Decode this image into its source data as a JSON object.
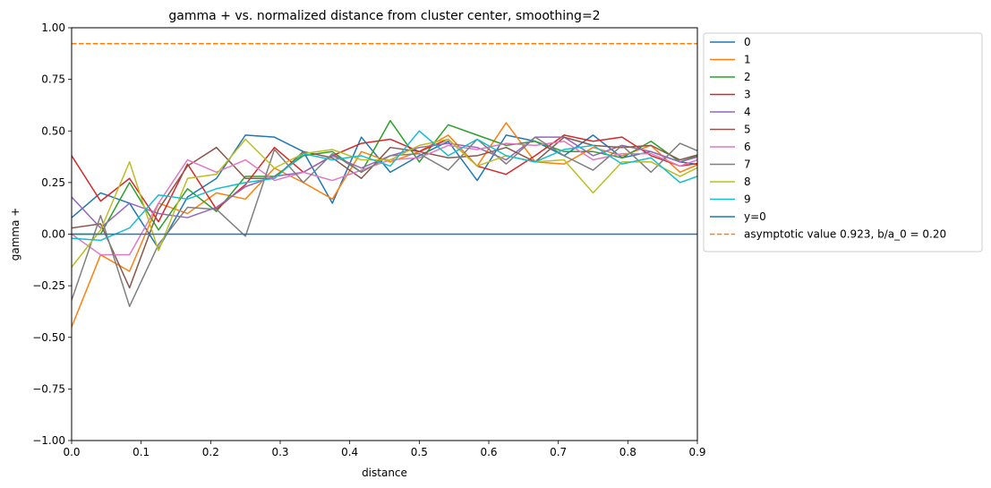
{
  "chart_data": {
    "type": "line",
    "title": "gamma + vs. normalized distance from cluster center, smoothing=2",
    "xlabel": "distance",
    "ylabel": "gamma +",
    "xlim": [
      0,
      0.9
    ],
    "ylim": [
      -1.0,
      1.0
    ],
    "xticks": [
      "0.0",
      "0.1",
      "0.2",
      "0.3",
      "0.4",
      "0.5",
      "0.6",
      "0.7",
      "0.8",
      "0.9"
    ],
    "yticks": [
      "−1.00",
      "−0.75",
      "−0.50",
      "−0.25",
      "0.00",
      "0.25",
      "0.50",
      "0.75",
      "1.00"
    ],
    "grid": false,
    "legend_position": "outside-right",
    "x": [
      0.0,
      0.0417,
      0.0833,
      0.125,
      0.1667,
      0.2083,
      0.25,
      0.2917,
      0.3333,
      0.375,
      0.4167,
      0.4583,
      0.5,
      0.5417,
      0.5833,
      0.625,
      0.6667,
      0.7083,
      0.75,
      0.7917,
      0.8333,
      0.875,
      0.9167
    ],
    "series": [
      {
        "name": "0",
        "color": "#1f77b4",
        "values": [
          0.08,
          0.2,
          0.15,
          -0.07,
          0.18,
          0.27,
          0.48,
          0.47,
          0.4,
          0.15,
          0.47,
          0.3,
          0.38,
          0.45,
          0.26,
          0.48,
          0.45,
          0.38,
          0.48,
          0.37,
          0.4,
          0.35,
          0.33
        ]
      },
      {
        "name": "1",
        "color": "#ff7f0e",
        "values": [
          -0.45,
          -0.1,
          -0.18,
          0.15,
          0.1,
          0.2,
          0.17,
          0.32,
          0.25,
          0.17,
          0.4,
          0.35,
          0.4,
          0.48,
          0.33,
          0.54,
          0.35,
          0.34,
          0.42,
          0.38,
          0.43,
          0.3,
          0.36
        ]
      },
      {
        "name": "2",
        "color": "#2ca02c",
        "values": [
          0.0,
          0.0,
          0.25,
          0.02,
          0.22,
          0.11,
          0.28,
          0.28,
          0.38,
          0.4,
          0.3,
          0.55,
          0.35,
          0.53,
          0.48,
          0.43,
          0.45,
          0.4,
          0.4,
          0.37,
          0.45,
          0.35,
          0.4
        ]
      },
      {
        "name": "3",
        "color": "#d62728",
        "values": [
          0.38,
          0.16,
          0.27,
          0.06,
          0.34,
          0.12,
          0.24,
          0.42,
          0.3,
          0.38,
          0.44,
          0.46,
          0.4,
          0.46,
          0.33,
          0.29,
          0.38,
          0.48,
          0.45,
          0.47,
          0.38,
          0.33,
          0.35
        ]
      },
      {
        "name": "4",
        "color": "#9467bd",
        "values": [
          0.18,
          0.03,
          0.15,
          0.1,
          0.08,
          0.13,
          0.23,
          0.28,
          0.3,
          0.38,
          0.32,
          0.38,
          0.42,
          0.44,
          0.42,
          0.36,
          0.47,
          0.47,
          0.38,
          0.43,
          0.4,
          0.35,
          0.39
        ]
      },
      {
        "name": "5",
        "color": "#8c564b",
        "values": [
          0.03,
          0.05,
          -0.26,
          0.12,
          0.33,
          0.42,
          0.27,
          0.27,
          0.4,
          0.37,
          0.27,
          0.42,
          0.4,
          0.37,
          0.38,
          0.42,
          0.35,
          0.47,
          0.43,
          0.42,
          0.43,
          0.36,
          0.4
        ]
      },
      {
        "name": "6",
        "color": "#e377c2",
        "values": [
          0.0,
          -0.1,
          -0.1,
          0.15,
          0.36,
          0.3,
          0.36,
          0.26,
          0.3,
          0.26,
          0.31,
          0.36,
          0.37,
          0.43,
          0.41,
          0.44,
          0.43,
          0.45,
          0.36,
          0.39,
          0.39,
          0.33,
          0.38
        ]
      },
      {
        "name": "7",
        "color": "#7f7f7f",
        "values": [
          -0.32,
          0.09,
          -0.35,
          -0.05,
          0.13,
          0.12,
          -0.01,
          0.41,
          0.25,
          0.39,
          0.3,
          0.38,
          0.39,
          0.31,
          0.46,
          0.34,
          0.47,
          0.38,
          0.31,
          0.43,
          0.3,
          0.44,
          0.38
        ]
      },
      {
        "name": "8",
        "color": "#bcbd22",
        "values": [
          -0.16,
          0.02,
          0.35,
          -0.08,
          0.27,
          0.29,
          0.46,
          0.32,
          0.39,
          0.41,
          0.36,
          0.36,
          0.43,
          0.46,
          0.33,
          0.38,
          0.35,
          0.36,
          0.2,
          0.35,
          0.35,
          0.28,
          0.35
        ]
      },
      {
        "name": "9",
        "color": "#17becf",
        "values": [
          -0.02,
          -0.03,
          0.03,
          0.19,
          0.17,
          0.22,
          0.25,
          0.27,
          0.39,
          0.36,
          0.38,
          0.33,
          0.5,
          0.38,
          0.46,
          0.38,
          0.35,
          0.41,
          0.43,
          0.34,
          0.37,
          0.25,
          0.3
        ]
      },
      {
        "name": "y=0",
        "color": "#1f77b4",
        "values": [
          0,
          0,
          0,
          0,
          0,
          0,
          0,
          0,
          0,
          0,
          0,
          0,
          0,
          0,
          0,
          0,
          0,
          0,
          0,
          0,
          0,
          0,
          0
        ]
      }
    ],
    "reference_lines": [
      {
        "name": "asymptotic value 0.923, b/a_0 = 0.20",
        "y": 0.923,
        "color": "#ff7f0e",
        "style": "dashed"
      }
    ]
  }
}
